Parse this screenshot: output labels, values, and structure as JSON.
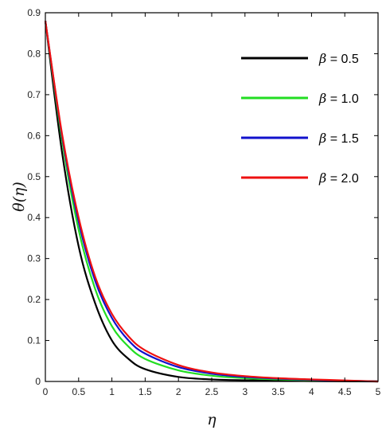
{
  "chart_data": {
    "type": "line",
    "title": "",
    "xlabel": "η",
    "ylabel": "θ(η)",
    "xlim": [
      0,
      5
    ],
    "ylim": [
      0,
      0.9
    ],
    "x_ticks": [
      0,
      0.5,
      1,
      1.5,
      2,
      2.5,
      3,
      3.5,
      4,
      4.5,
      5
    ],
    "y_ticks": [
      0,
      0.1,
      0.2,
      0.3,
      0.4,
      0.5,
      0.6,
      0.7,
      0.8,
      0.9
    ],
    "grid": false,
    "legend_position": "top-right",
    "x": [
      0,
      0.25,
      0.5,
      0.75,
      1,
      1.25,
      1.5,
      2,
      2.5,
      3,
      3.5,
      4,
      4.5,
      5
    ],
    "series": [
      {
        "name": "β = 0.5",
        "legend_symbol": "β",
        "legend_value": "= 0.5",
        "color": "#000000",
        "values": [
          0.88,
          0.56,
          0.33,
          0.19,
          0.1,
          0.055,
          0.03,
          0.011,
          0.005,
          0.003,
          0.002,
          0.001,
          0.0005,
          0
        ]
      },
      {
        "name": "β = 1.0",
        "legend_symbol": "β",
        "legend_value": "= 1.0",
        "color": "#22dd22",
        "values": [
          0.88,
          0.59,
          0.37,
          0.225,
          0.135,
          0.085,
          0.055,
          0.027,
          0.014,
          0.008,
          0.005,
          0.003,
          0.0015,
          0
        ]
      },
      {
        "name": "β = 1.5",
        "legend_symbol": "β",
        "legend_value": "= 1.5",
        "color": "#1111cc",
        "values": [
          0.88,
          0.6,
          0.39,
          0.245,
          0.155,
          0.1,
          0.068,
          0.035,
          0.019,
          0.011,
          0.007,
          0.004,
          0.002,
          0
        ]
      },
      {
        "name": "β = 2.0",
        "legend_symbol": "β",
        "legend_value": "= 2.0",
        "color": "#ee1111",
        "values": [
          0.88,
          0.605,
          0.4,
          0.255,
          0.165,
          0.11,
          0.076,
          0.04,
          0.022,
          0.013,
          0.008,
          0.005,
          0.0025,
          0
        ]
      }
    ]
  }
}
